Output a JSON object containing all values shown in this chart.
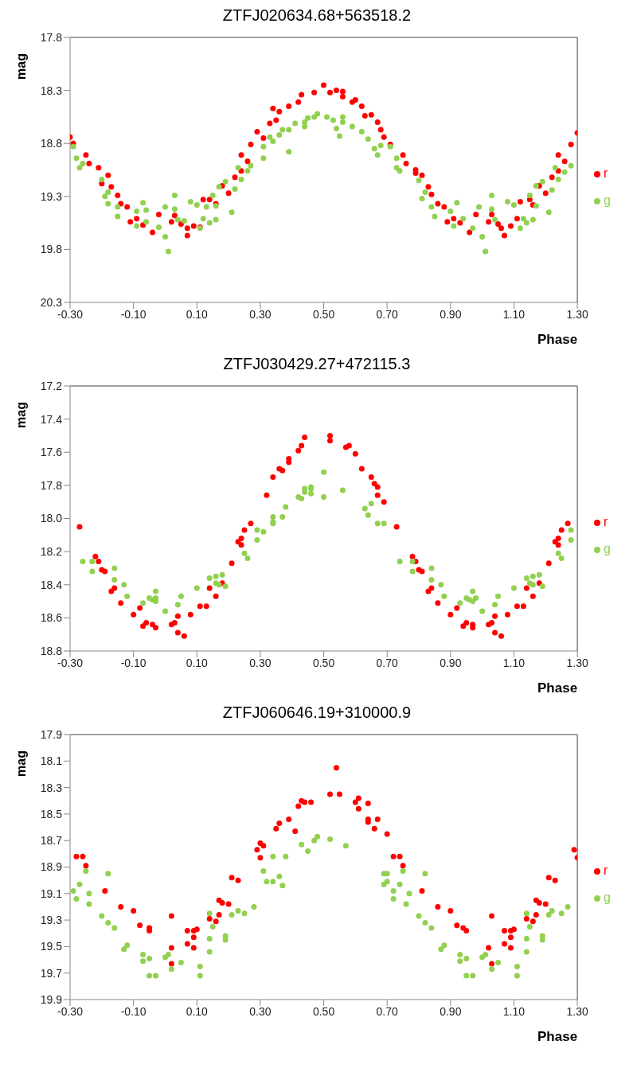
{
  "chart_data": [
    {
      "type": "scatter",
      "title": "ZTFJ020634.68+563518.2",
      "xlabel": "Phase",
      "ylabel": "mag",
      "xlim": [
        -0.3,
        1.3
      ],
      "xticks": [
        {
          "value": -0.3,
          "label": "-0.30"
        },
        {
          "value": -0.1,
          "label": "-0.10"
        },
        {
          "value": 0.1,
          "label": "0.10"
        },
        {
          "value": 0.3,
          "label": "0.30"
        },
        {
          "value": 0.5,
          "label": "0.50"
        },
        {
          "value": 0.7,
          "label": "0.70"
        },
        {
          "value": 0.9,
          "label": "0.90"
        },
        {
          "value": 1.1,
          "label": "1.10"
        },
        {
          "value": 1.3,
          "label": "1.30"
        }
      ],
      "ylim": [
        20.3,
        17.8
      ],
      "yticks": [
        17.8,
        18.3,
        18.8,
        19.3,
        19.8,
        20.3
      ],
      "grid": false,
      "legend": "right",
      "marker": "circle",
      "series": [
        {
          "name": "r",
          "color": "#ff0000",
          "x": [
            -0.3,
            -0.29,
            -0.25,
            -0.24,
            -0.21,
            -0.18,
            -0.2,
            -0.17,
            -0.15,
            -0.14,
            -0.12,
            -0.11,
            -0.09,
            -0.07,
            -0.04,
            -0.02,
            0.02,
            0.03,
            0.05,
            0.07,
            0.07,
            0.09,
            0.11,
            0.12,
            0.14,
            0.16,
            0.18,
            0.2,
            0.22,
            0.24,
            0.24,
            0.26,
            0.27,
            0.29,
            0.31,
            0.33,
            0.34,
            0.35,
            0.36,
            0.39,
            0.42,
            0.43,
            0.47,
            0.5,
            0.52,
            0.54,
            0.56,
            0.56,
            0.59,
            0.6,
            0.62,
            0.63,
            0.65,
            0.67,
            0.68,
            0.69,
            0.71,
            0.75,
            0.76,
            0.79,
            0.79,
            0.81,
            0.83,
            0.84,
            0.86,
            0.88,
            0.89,
            0.91,
            0.93,
            0.96,
            0.98,
            1.02,
            1.03,
            1.05,
            1.06,
            1.07,
            1.09,
            1.11,
            1.12,
            1.15,
            1.16,
            1.18,
            1.2,
            1.22,
            1.24,
            1.24,
            1.26,
            1.28,
            1.3
          ],
          "values": [
            18.74,
            18.8,
            18.91,
            18.99,
            19.03,
            19.1,
            19.18,
            19.21,
            19.29,
            19.37,
            19.4,
            19.54,
            19.51,
            19.57,
            19.64,
            19.47,
            19.54,
            19.48,
            19.56,
            19.6,
            19.67,
            19.58,
            19.59,
            19.33,
            19.33,
            19.37,
            19.2,
            19.27,
            19.12,
            19.06,
            18.91,
            18.97,
            18.81,
            18.69,
            18.75,
            18.61,
            18.47,
            18.58,
            18.5,
            18.45,
            18.41,
            18.34,
            18.32,
            18.25,
            18.32,
            18.3,
            18.31,
            18.36,
            18.41,
            18.39,
            18.45,
            18.54,
            18.53,
            18.6,
            18.67,
            18.74,
            18.81,
            18.91,
            18.99,
            19.05,
            19.08,
            19.1,
            19.21,
            19.28,
            19.37,
            19.4,
            19.54,
            19.51,
            19.55,
            19.64,
            19.47,
            19.54,
            19.47,
            19.56,
            19.6,
            19.67,
            19.58,
            19.51,
            19.35,
            19.33,
            19.38,
            19.2,
            19.27,
            19.12,
            19.06,
            18.91,
            18.97,
            18.81,
            18.7
          ]
        },
        {
          "name": "g",
          "color": "#92d050",
          "x": [
            -0.29,
            -0.28,
            -0.27,
            -0.26,
            -0.2,
            -0.19,
            -0.18,
            -0.18,
            -0.15,
            -0.15,
            -0.09,
            -0.07,
            -0.09,
            -0.06,
            -0.06,
            -0.02,
            0.0,
            0.0,
            0.01,
            0.03,
            0.03,
            0.04,
            0.06,
            0.08,
            0.1,
            0.11,
            0.12,
            0.13,
            0.14,
            0.15,
            0.16,
            0.16,
            0.17,
            0.19,
            0.21,
            0.22,
            0.23,
            0.24,
            0.26,
            0.27,
            0.31,
            0.31,
            0.33,
            0.34,
            0.36,
            0.37,
            0.39,
            0.39,
            0.41,
            0.44,
            0.44,
            0.45,
            0.47,
            0.48,
            0.51,
            0.53,
            0.54,
            0.55,
            0.56,
            0.56,
            0.59,
            0.62,
            0.64,
            0.66,
            0.67,
            0.68,
            0.71,
            0.73,
            0.73,
            0.74,
            0.8,
            0.81,
            0.82,
            0.84,
            0.85,
            0.9,
            0.92,
            0.91,
            0.94,
            0.97,
            0.99,
            1.0,
            1.01,
            1.03,
            1.03,
            1.04,
            1.08,
            1.1,
            1.12,
            1.13,
            1.14,
            1.15,
            1.16,
            1.17,
            1.17,
            1.19,
            1.21,
            1.22,
            1.23,
            1.24,
            1.26,
            1.28
          ],
          "values": [
            18.83,
            18.94,
            19.03,
            18.99,
            19.14,
            19.3,
            19.26,
            19.37,
            19.4,
            19.49,
            19.44,
            19.36,
            19.58,
            19.54,
            19.43,
            19.59,
            19.4,
            19.68,
            19.82,
            19.29,
            19.42,
            19.52,
            19.53,
            19.35,
            19.38,
            19.6,
            19.51,
            19.4,
            19.55,
            19.29,
            19.52,
            19.39,
            19.21,
            19.16,
            19.45,
            19.23,
            19.03,
            19.14,
            19.06,
            19.01,
            18.94,
            18.83,
            18.74,
            18.78,
            18.72,
            18.67,
            18.67,
            18.88,
            18.61,
            18.6,
            18.64,
            18.56,
            18.55,
            18.52,
            18.55,
            18.58,
            18.66,
            18.73,
            18.6,
            18.55,
            18.64,
            18.69,
            18.76,
            18.85,
            18.91,
            18.82,
            18.83,
            18.94,
            19.03,
            19.06,
            19.15,
            19.32,
            19.26,
            19.4,
            19.49,
            19.44,
            19.36,
            19.58,
            19.51,
            19.6,
            19.4,
            19.68,
            19.82,
            19.29,
            19.42,
            19.52,
            19.35,
            19.38,
            19.6,
            19.51,
            19.55,
            19.29,
            19.52,
            19.39,
            19.2,
            19.16,
            19.45,
            19.24,
            19.03,
            19.14,
            19.07,
            19.01
          ]
        }
      ]
    },
    {
      "type": "scatter",
      "title": "ZTFJ030429.27+472115.3",
      "xlabel": "Phase",
      "ylabel": "mag",
      "xlim": [
        -0.3,
        1.3
      ],
      "xticks": [
        {
          "value": -0.3,
          "label": "-0.30"
        },
        {
          "value": -0.1,
          "label": "-0.10"
        },
        {
          "value": 0.1,
          "label": "0.10"
        },
        {
          "value": 0.3,
          "label": "0.30"
        },
        {
          "value": 0.5,
          "label": "0.50"
        },
        {
          "value": 0.7,
          "label": "0.70"
        },
        {
          "value": 0.9,
          "label": "0.90"
        },
        {
          "value": 1.1,
          "label": "1.10"
        },
        {
          "value": 1.3,
          "label": "1.30"
        }
      ],
      "ylim": [
        18.8,
        17.2
      ],
      "yticks": [
        17.2,
        17.4,
        17.6,
        17.8,
        {
          "value": 18.0,
          "label": "18.0"
        },
        18.2,
        18.4,
        18.6,
        18.8
      ],
      "grid": false,
      "legend": "right",
      "marker": "circle",
      "series": [
        {
          "name": "r",
          "color": "#ff0000",
          "x": [
            -0.27,
            -0.22,
            -0.21,
            -0.2,
            -0.19,
            -0.17,
            -0.16,
            -0.14,
            -0.1,
            -0.08,
            -0.07,
            -0.06,
            -0.04,
            -0.03,
            0.02,
            0.03,
            0.04,
            0.04,
            0.06,
            0.08,
            0.11,
            0.13,
            0.14,
            0.16,
            0.18,
            0.21,
            0.23,
            0.24,
            0.24,
            0.25,
            0.27,
            0.32,
            0.34,
            0.36,
            0.37,
            0.39,
            0.39,
            0.42,
            0.43,
            0.44,
            0.52,
            0.52,
            0.57,
            0.58,
            0.6,
            0.62,
            0.65,
            0.66,
            0.67,
            0.67,
            0.69,
            0.73,
            0.78,
            0.79,
            0.8,
            0.81,
            0.83,
            0.84,
            0.86,
            0.9,
            0.92,
            0.94,
            0.95,
            0.97,
            0.97,
            1.02,
            1.03,
            1.04,
            1.04,
            1.06,
            1.08,
            1.11,
            1.13,
            1.14,
            1.16,
            1.18,
            1.21,
            1.23,
            1.24,
            1.24,
            1.25,
            1.27
          ],
          "values": [
            18.05,
            18.23,
            18.26,
            18.31,
            18.32,
            18.44,
            18.42,
            18.51,
            18.58,
            18.54,
            18.65,
            18.63,
            18.64,
            18.66,
            18.64,
            18.63,
            18.59,
            18.69,
            18.71,
            18.58,
            18.53,
            18.53,
            18.42,
            18.47,
            18.39,
            18.27,
            18.14,
            18.16,
            18.12,
            18.07,
            18.03,
            17.86,
            17.75,
            17.7,
            17.71,
            17.64,
            17.66,
            17.59,
            17.56,
            17.51,
            17.5,
            17.53,
            17.57,
            17.56,
            17.61,
            17.7,
            17.75,
            17.79,
            17.81,
            17.86,
            17.9,
            18.05,
            18.23,
            18.26,
            18.31,
            18.32,
            18.44,
            18.42,
            18.51,
            18.58,
            18.54,
            18.65,
            18.63,
            18.64,
            18.66,
            18.64,
            18.63,
            18.59,
            18.69,
            18.71,
            18.58,
            18.53,
            18.53,
            18.42,
            18.47,
            18.39,
            18.27,
            18.14,
            18.16,
            18.12,
            18.07,
            18.03
          ]
        },
        {
          "name": "g",
          "color": "#92d050",
          "x": [
            -0.26,
            -0.23,
            -0.23,
            -0.16,
            -0.16,
            -0.13,
            -0.12,
            -0.07,
            -0.05,
            -0.04,
            -0.03,
            -0.03,
            -0.03,
            0.0,
            0.04,
            0.05,
            0.1,
            0.14,
            0.16,
            0.16,
            0.17,
            0.18,
            0.19,
            0.25,
            0.26,
            0.29,
            0.29,
            0.31,
            0.34,
            0.34,
            0.34,
            0.37,
            0.38,
            0.42,
            0.43,
            0.44,
            0.44,
            0.46,
            0.46,
            0.46,
            0.5,
            0.5,
            0.56,
            0.63,
            0.65,
            0.64,
            0.67,
            0.69,
            0.74,
            0.78,
            0.78,
            0.84,
            0.84,
            0.87,
            0.88,
            0.93,
            0.95,
            0.96,
            0.97,
            0.98,
            0.97,
            1.0,
            1.04,
            1.05,
            1.1,
            1.14,
            1.16,
            1.15,
            1.16,
            1.18,
            1.19,
            1.24,
            1.25,
            1.28,
            1.28
          ],
          "values": [
            18.26,
            18.26,
            18.32,
            18.3,
            18.37,
            18.4,
            18.47,
            18.51,
            18.48,
            18.49,
            18.44,
            18.48,
            18.5,
            18.56,
            18.52,
            18.47,
            18.42,
            18.36,
            18.35,
            18.39,
            18.4,
            18.34,
            18.41,
            18.21,
            18.24,
            18.13,
            18.07,
            18.08,
            17.99,
            18.02,
            18.03,
            17.99,
            17.93,
            17.87,
            17.88,
            17.82,
            17.84,
            17.82,
            17.81,
            17.85,
            17.72,
            17.87,
            17.83,
            17.94,
            17.91,
            17.98,
            18.03,
            18.03,
            18.26,
            18.26,
            18.32,
            18.3,
            18.37,
            18.4,
            18.47,
            18.51,
            18.48,
            18.49,
            18.44,
            18.48,
            18.5,
            18.56,
            18.52,
            18.47,
            18.42,
            18.36,
            18.35,
            18.39,
            18.4,
            18.34,
            18.41,
            18.21,
            18.24,
            18.13,
            18.07
          ]
        }
      ]
    },
    {
      "type": "scatter",
      "title": "ZTFJ060646.19+310000.9",
      "xlabel": "Phase",
      "ylabel": "mag",
      "xlim": [
        -0.3,
        1.3
      ],
      "xticks": [
        {
          "value": -0.3,
          "label": "-0.30"
        },
        {
          "value": -0.1,
          "label": "-0.10"
        },
        {
          "value": 0.1,
          "label": "0.10"
        },
        {
          "value": 0.3,
          "label": "0.30"
        },
        {
          "value": 0.5,
          "label": "0.50"
        },
        {
          "value": 0.7,
          "label": "0.70"
        },
        {
          "value": 0.9,
          "label": "0.90"
        },
        {
          "value": 1.1,
          "label": "1.10"
        },
        {
          "value": 1.3,
          "label": "1.30"
        }
      ],
      "ylim": [
        19.9,
        17.9
      ],
      "yticks": [
        17.9,
        18.1,
        18.3,
        18.5,
        18.7,
        18.9,
        19.1,
        19.3,
        19.5,
        19.7,
        19.9
      ],
      "grid": false,
      "legend": "right",
      "marker": "circle",
      "series": [
        {
          "name": "r",
          "color": "#ff0000",
          "x": [
            -0.28,
            -0.26,
            -0.25,
            -0.19,
            -0.14,
            -0.1,
            -0.08,
            -0.05,
            -0.05,
            0.02,
            0.02,
            0.02,
            0.07,
            0.07,
            0.09,
            0.09,
            0.09,
            0.1,
            0.14,
            0.16,
            0.17,
            0.17,
            0.18,
            0.2,
            0.21,
            0.23,
            0.29,
            0.3,
            0.3,
            0.31,
            0.35,
            0.36,
            0.39,
            0.41,
            0.42,
            0.43,
            0.44,
            0.46,
            0.52,
            0.54,
            0.55,
            0.6,
            0.61,
            0.61,
            0.64,
            0.64,
            0.64,
            0.66,
            0.67,
            0.7,
            0.72,
            0.74,
            0.75,
            0.81,
            0.86,
            0.9,
            0.92,
            0.94,
            0.95,
            1.03,
            1.02,
            1.03,
            1.07,
            1.07,
            1.09,
            1.09,
            1.09,
            1.1,
            1.14,
            1.16,
            1.17,
            1.17,
            1.18,
            1.2,
            1.21,
            1.23,
            1.29,
            1.3
          ],
          "values": [
            18.82,
            18.82,
            18.89,
            19.08,
            19.2,
            19.23,
            19.34,
            19.36,
            19.38,
            19.27,
            19.51,
            19.63,
            19.38,
            19.48,
            19.38,
            19.43,
            19.51,
            19.37,
            19.29,
            19.31,
            19.15,
            19.26,
            19.17,
            19.18,
            18.98,
            19.0,
            18.77,
            18.83,
            18.72,
            18.74,
            18.61,
            18.57,
            18.54,
            18.63,
            18.44,
            18.4,
            18.41,
            18.41,
            18.35,
            18.15,
            18.35,
            18.41,
            18.38,
            18.46,
            18.42,
            18.54,
            18.56,
            18.61,
            18.54,
            18.65,
            18.82,
            18.82,
            18.89,
            19.08,
            19.2,
            19.23,
            19.34,
            19.36,
            19.38,
            19.27,
            19.51,
            19.63,
            19.38,
            19.48,
            19.38,
            19.43,
            19.51,
            19.37,
            19.29,
            19.31,
            19.15,
            19.26,
            19.17,
            19.18,
            18.98,
            19.0,
            18.77,
            18.83
          ]
        },
        {
          "name": "g",
          "color": "#92d050",
          "x": [
            -0.29,
            -0.28,
            -0.27,
            -0.25,
            -0.24,
            -0.24,
            -0.2,
            -0.18,
            -0.18,
            -0.16,
            -0.13,
            -0.12,
            -0.07,
            -0.07,
            -0.05,
            -0.05,
            -0.03,
            0.0,
            0.01,
            0.02,
            0.05,
            0.11,
            0.11,
            0.14,
            0.14,
            0.14,
            0.15,
            0.19,
            0.19,
            0.21,
            0.23,
            0.25,
            0.28,
            0.31,
            0.32,
            0.34,
            0.34,
            0.36,
            0.37,
            0.38,
            0.43,
            0.45,
            0.47,
            0.48,
            0.52,
            0.57,
            0.69,
            0.7,
            0.69,
            0.7,
            0.72,
            0.72,
            0.74,
            0.75,
            0.76,
            0.77,
            0.8,
            0.82,
            0.82,
            0.84,
            0.87,
            0.88,
            0.93,
            0.93,
            0.95,
            0.95,
            0.97,
            1.0,
            1.01,
            1.03,
            1.05,
            1.11,
            1.11,
            1.14,
            1.14,
            1.14,
            1.15,
            1.19,
            1.19,
            1.21,
            1.22,
            1.25,
            1.27
          ],
          "values": [
            19.08,
            19.14,
            19.03,
            18.93,
            19.18,
            19.1,
            19.27,
            18.95,
            19.32,
            19.36,
            19.52,
            19.49,
            19.56,
            19.61,
            19.59,
            19.72,
            19.72,
            19.58,
            19.56,
            19.67,
            19.62,
            19.65,
            19.72,
            19.25,
            19.44,
            19.54,
            19.35,
            19.42,
            19.45,
            19.26,
            19.23,
            19.25,
            19.2,
            18.93,
            19.01,
            19.01,
            18.82,
            18.97,
            19.04,
            18.82,
            18.73,
            18.78,
            18.7,
            18.67,
            18.69,
            18.74,
            18.95,
            18.95,
            19.03,
            19.01,
            19.08,
            19.14,
            19.03,
            18.93,
            19.18,
            19.1,
            19.27,
            18.95,
            19.32,
            19.36,
            19.52,
            19.49,
            19.56,
            19.61,
            19.59,
            19.72,
            19.72,
            19.58,
            19.56,
            19.67,
            19.62,
            19.65,
            19.72,
            19.25,
            19.44,
            19.54,
            19.35,
            19.42,
            19.45,
            19.26,
            19.23,
            19.25,
            19.2
          ]
        }
      ]
    }
  ]
}
